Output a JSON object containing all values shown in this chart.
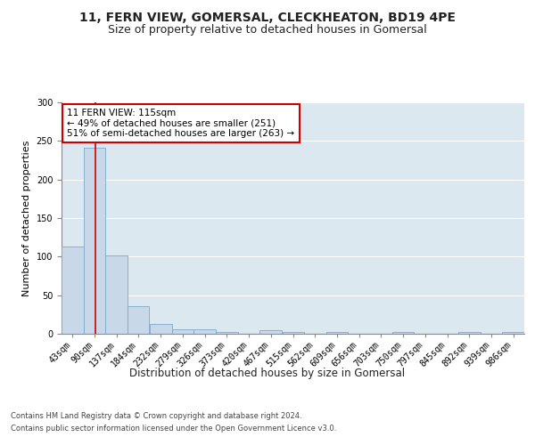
{
  "title1": "11, FERN VIEW, GOMERSAL, CLECKHEATON, BD19 4PE",
  "title2": "Size of property relative to detached houses in Gomersal",
  "xlabel": "Distribution of detached houses by size in Gomersal",
  "ylabel": "Number of detached properties",
  "bar_values": [
    113,
    241,
    101,
    36,
    13,
    6,
    6,
    2,
    0,
    5,
    2,
    0,
    2,
    0,
    0,
    2,
    0,
    0,
    2,
    0,
    2
  ],
  "bin_edges": [
    43,
    90,
    137,
    184,
    232,
    279,
    326,
    373,
    420,
    467,
    515,
    562,
    609,
    656,
    703,
    750,
    797,
    845,
    892,
    939,
    986,
    1033
  ],
  "bar_color": "#c8d8e8",
  "bar_edge_color": "#7aaac8",
  "property_line_x": 115,
  "property_line_color": "#cc0000",
  "annotation_text": "11 FERN VIEW: 115sqm\n← 49% of detached houses are smaller (251)\n51% of semi-detached houses are larger (263) →",
  "annotation_box_color": "#ffffff",
  "annotation_box_edge_color": "#cc0000",
  "ylim": [
    0,
    300
  ],
  "yticks": [
    0,
    50,
    100,
    150,
    200,
    250,
    300
  ],
  "plot_bg_color": "#dce8f0",
  "fig_bg_color": "#ffffff",
  "footer_line1": "Contains HM Land Registry data © Crown copyright and database right 2024.",
  "footer_line2": "Contains public sector information licensed under the Open Government Licence v3.0.",
  "title_fontsize": 10,
  "subtitle_fontsize": 9,
  "ylabel_fontsize": 8,
  "xlabel_fontsize": 8.5,
  "tick_label_fontsize": 7,
  "annotation_fontsize": 7.5,
  "footer_fontsize": 6
}
